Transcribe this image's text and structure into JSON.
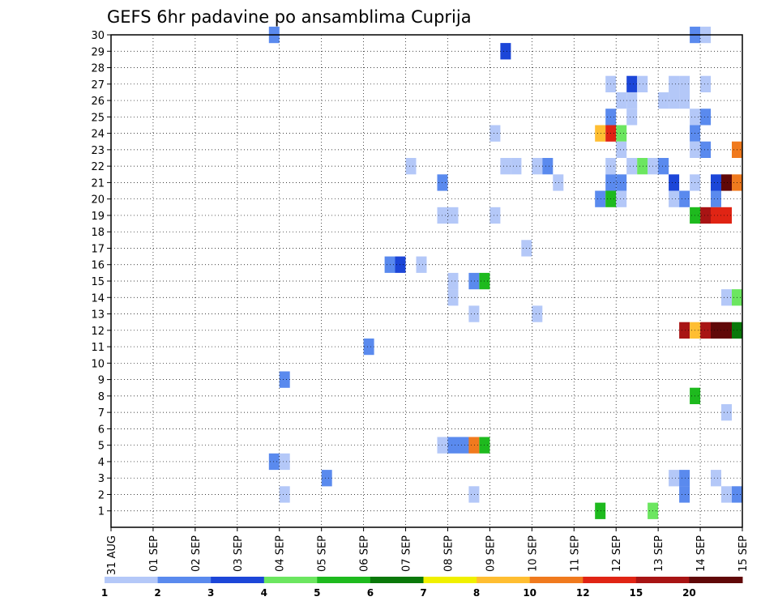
{
  "chart_data": {
    "type": "heatmap",
    "title": "GEFS 6hr padavine po ansamblima Cuprija",
    "xlabel": "",
    "ylabel": "",
    "x_ticks": [
      "31 AUG",
      "01 SEP",
      "02 SEP",
      "03 SEP",
      "04 SEP",
      "05 SEP",
      "06 SEP",
      "07 SEP",
      "08 SEP",
      "09 SEP",
      "10 SEP",
      "11 SEP",
      "12 SEP",
      "13 SEP",
      "14 SEP",
      "15 SEP"
    ],
    "y_ticks": [
      "1",
      "2",
      "3",
      "4",
      "5",
      "6",
      "7",
      "8",
      "9",
      "10",
      "11",
      "12",
      "13",
      "14",
      "15",
      "16",
      "17",
      "18",
      "19",
      "20",
      "21",
      "22",
      "23",
      "24",
      "25",
      "26",
      "27",
      "28",
      "29",
      "30"
    ],
    "xlim_days": [
      0,
      15
    ],
    "ylim": [
      0,
      30
    ],
    "step_hours": 6,
    "grid": true,
    "colorbar": {
      "levels": [
        "1",
        "2",
        "3",
        "4",
        "5",
        "6",
        "7",
        "8",
        "10",
        "12",
        "15",
        "20"
      ],
      "colors": [
        "#b4c8f8",
        "#5a8aee",
        "#1c46d8",
        "#6ce660",
        "#1eba1e",
        "#0a780a",
        "#f0f000",
        "#ffbe32",
        "#f07a1e",
        "#e02414",
        "#a81414",
        "#600808"
      ]
    },
    "cells": [
      {
        "member": 30,
        "day": 3.75,
        "cls": 1
      },
      {
        "member": 30,
        "day": 13.75,
        "cls": 1
      },
      {
        "member": 30,
        "day": 14.0,
        "cls": 0
      },
      {
        "member": 29,
        "day": 9.25,
        "cls": 2
      },
      {
        "member": 27,
        "day": 11.75,
        "cls": 0
      },
      {
        "member": 27,
        "day": 12.25,
        "cls": 2
      },
      {
        "member": 27,
        "day": 12.5,
        "cls": 0
      },
      {
        "member": 27,
        "day": 13.25,
        "cls": 0
      },
      {
        "member": 27,
        "day": 13.5,
        "cls": 0
      },
      {
        "member": 27,
        "day": 14.0,
        "cls": 0
      },
      {
        "member": 26,
        "day": 12.0,
        "cls": 0
      },
      {
        "member": 26,
        "day": 12.25,
        "cls": 0
      },
      {
        "member": 26,
        "day": 13.0,
        "cls": 0
      },
      {
        "member": 26,
        "day": 13.25,
        "cls": 0
      },
      {
        "member": 26,
        "day": 13.5,
        "cls": 0
      },
      {
        "member": 25,
        "day": 11.75,
        "cls": 1
      },
      {
        "member": 25,
        "day": 12.25,
        "cls": 0
      },
      {
        "member": 25,
        "day": 13.75,
        "cls": 0
      },
      {
        "member": 25,
        "day": 14.0,
        "cls": 1
      },
      {
        "member": 24,
        "day": 9.0,
        "cls": 0
      },
      {
        "member": 24,
        "day": 11.5,
        "cls": 7
      },
      {
        "member": 24,
        "day": 11.75,
        "cls": 9
      },
      {
        "member": 24,
        "day": 12.0,
        "cls": 3
      },
      {
        "member": 24,
        "day": 13.75,
        "cls": 1
      },
      {
        "member": 23,
        "day": 12.0,
        "cls": 0
      },
      {
        "member": 23,
        "day": 13.75,
        "cls": 0
      },
      {
        "member": 23,
        "day": 14.0,
        "cls": 1
      },
      {
        "member": 23,
        "day": 14.75,
        "cls": 8
      },
      {
        "member": 22,
        "day": 7.0,
        "cls": 0
      },
      {
        "member": 22,
        "day": 9.25,
        "cls": 0
      },
      {
        "member": 22,
        "day": 9.5,
        "cls": 0
      },
      {
        "member": 22,
        "day": 10.0,
        "cls": 0
      },
      {
        "member": 22,
        "day": 10.25,
        "cls": 1
      },
      {
        "member": 22,
        "day": 11.75,
        "cls": 0
      },
      {
        "member": 22,
        "day": 12.25,
        "cls": 0
      },
      {
        "member": 22,
        "day": 12.5,
        "cls": 3
      },
      {
        "member": 22,
        "day": 12.75,
        "cls": 0
      },
      {
        "member": 22,
        "day": 13.0,
        "cls": 1
      },
      {
        "member": 21,
        "day": 7.75,
        "cls": 1
      },
      {
        "member": 21,
        "day": 10.5,
        "cls": 0
      },
      {
        "member": 21,
        "day": 11.75,
        "cls": 1
      },
      {
        "member": 21,
        "day": 12.0,
        "cls": 1
      },
      {
        "member": 21,
        "day": 13.25,
        "cls": 2
      },
      {
        "member": 21,
        "day": 13.75,
        "cls": 0
      },
      {
        "member": 21,
        "day": 14.25,
        "cls": 2
      },
      {
        "member": 21,
        "day": 14.5,
        "cls": 11
      },
      {
        "member": 21,
        "day": 14.75,
        "cls": 8
      },
      {
        "member": 20,
        "day": 11.5,
        "cls": 1
      },
      {
        "member": 20,
        "day": 11.75,
        "cls": 4
      },
      {
        "member": 20,
        "day": 12.0,
        "cls": 0
      },
      {
        "member": 20,
        "day": 13.25,
        "cls": 0
      },
      {
        "member": 20,
        "day": 13.5,
        "cls": 1
      },
      {
        "member": 20,
        "day": 14.25,
        "cls": 1
      },
      {
        "member": 19,
        "day": 7.75,
        "cls": 0
      },
      {
        "member": 19,
        "day": 8.0,
        "cls": 0
      },
      {
        "member": 19,
        "day": 9.0,
        "cls": 0
      },
      {
        "member": 19,
        "day": 13.75,
        "cls": 4
      },
      {
        "member": 19,
        "day": 14.0,
        "cls": 10
      },
      {
        "member": 19,
        "day": 14.25,
        "cls": 9
      },
      {
        "member": 19,
        "day": 14.5,
        "cls": 9
      },
      {
        "member": 17,
        "day": 9.75,
        "cls": 0
      },
      {
        "member": 16,
        "day": 6.5,
        "cls": 1
      },
      {
        "member": 16,
        "day": 6.75,
        "cls": 2
      },
      {
        "member": 16,
        "day": 7.25,
        "cls": 0
      },
      {
        "member": 15,
        "day": 8.0,
        "cls": 0
      },
      {
        "member": 15,
        "day": 8.5,
        "cls": 1
      },
      {
        "member": 15,
        "day": 8.75,
        "cls": 4
      },
      {
        "member": 14,
        "day": 8.0,
        "cls": 0
      },
      {
        "member": 14,
        "day": 14.5,
        "cls": 0
      },
      {
        "member": 14,
        "day": 14.75,
        "cls": 3
      },
      {
        "member": 13,
        "day": 8.5,
        "cls": 0
      },
      {
        "member": 13,
        "day": 10.0,
        "cls": 0
      },
      {
        "member": 12,
        "day": 13.5,
        "cls": 10
      },
      {
        "member": 12,
        "day": 13.75,
        "cls": 7
      },
      {
        "member": 12,
        "day": 14.0,
        "cls": 10
      },
      {
        "member": 12,
        "day": 14.25,
        "cls": 11
      },
      {
        "member": 12,
        "day": 14.5,
        "cls": 11
      },
      {
        "member": 12,
        "day": 14.75,
        "cls": 5
      },
      {
        "member": 11,
        "day": 6.0,
        "cls": 1
      },
      {
        "member": 9,
        "day": 4.0,
        "cls": 1
      },
      {
        "member": 8,
        "day": 13.75,
        "cls": 4
      },
      {
        "member": 7,
        "day": 14.5,
        "cls": 0
      },
      {
        "member": 5,
        "day": 7.75,
        "cls": 0
      },
      {
        "member": 5,
        "day": 8.0,
        "cls": 1
      },
      {
        "member": 5,
        "day": 8.25,
        "cls": 1
      },
      {
        "member": 5,
        "day": 8.5,
        "cls": 8
      },
      {
        "member": 5,
        "day": 8.75,
        "cls": 4
      },
      {
        "member": 4,
        "day": 3.75,
        "cls": 1
      },
      {
        "member": 4,
        "day": 4.0,
        "cls": 0
      },
      {
        "member": 3,
        "day": 5.0,
        "cls": 1
      },
      {
        "member": 3,
        "day": 13.25,
        "cls": 0
      },
      {
        "member": 3,
        "day": 13.5,
        "cls": 1
      },
      {
        "member": 3,
        "day": 14.25,
        "cls": 0
      },
      {
        "member": 2,
        "day": 4.0,
        "cls": 0
      },
      {
        "member": 2,
        "day": 8.5,
        "cls": 0
      },
      {
        "member": 2,
        "day": 13.5,
        "cls": 1
      },
      {
        "member": 2,
        "day": 14.5,
        "cls": 0
      },
      {
        "member": 2,
        "day": 14.75,
        "cls": 1
      },
      {
        "member": 1,
        "day": 11.5,
        "cls": 4
      },
      {
        "member": 1,
        "day": 12.75,
        "cls": 3
      }
    ]
  }
}
